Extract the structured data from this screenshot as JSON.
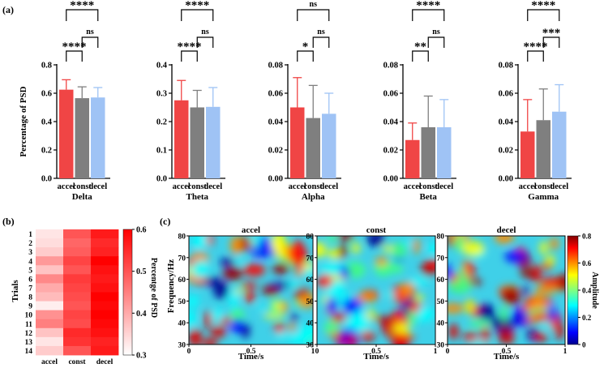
{
  "panel_labels": {
    "a": "(a)",
    "b": "(b)",
    "c": "(c)"
  },
  "colors": {
    "accel": "#f04545",
    "const": "#7f7f7f",
    "decel": "#9fc3f5"
  },
  "chart_data": [
    {
      "type": "bar",
      "band": "Delta",
      "ylabel": "Percentage of PSD",
      "categories": [
        "accel",
        "const",
        "decel"
      ],
      "values": [
        0.625,
        0.565,
        0.57
      ],
      "errors": [
        0.07,
        0.08,
        0.07
      ],
      "ylim": [
        0,
        0.8
      ],
      "yticks": [
        0.0,
        0.2,
        0.4,
        0.6,
        0.8
      ],
      "ytick_labels": [
        "0.0",
        "0.2",
        "0.4",
        "0.6",
        "0.8"
      ],
      "significance": [
        {
          "pair": [
            "accel",
            "const"
          ],
          "label": "****"
        },
        {
          "pair": [
            "const",
            "decel"
          ],
          "label": "ns"
        },
        {
          "pair": [
            "accel",
            "decel"
          ],
          "label": "****"
        }
      ]
    },
    {
      "type": "bar",
      "band": "Theta",
      "ylabel": "",
      "categories": [
        "accel",
        "const",
        "decel"
      ],
      "values": [
        0.275,
        0.25,
        0.252
      ],
      "errors": [
        0.07,
        0.06,
        0.068
      ],
      "ylim": [
        0,
        0.4
      ],
      "yticks": [
        0.0,
        0.1,
        0.2,
        0.3,
        0.4
      ],
      "ytick_labels": [
        "0.0",
        "0.1",
        "0.2",
        "0.3",
        "0.4"
      ],
      "significance": [
        {
          "pair": [
            "accel",
            "const"
          ],
          "label": "****"
        },
        {
          "pair": [
            "const",
            "decel"
          ],
          "label": "ns"
        },
        {
          "pair": [
            "accel",
            "decel"
          ],
          "label": "****"
        }
      ]
    },
    {
      "type": "bar",
      "band": "Alpha",
      "ylabel": "",
      "categories": [
        "accel",
        "const",
        "decel"
      ],
      "values": [
        0.05,
        0.0425,
        0.0455
      ],
      "errors": [
        0.021,
        0.023,
        0.0145
      ],
      "ylim": [
        0,
        0.08
      ],
      "yticks": [
        0.0,
        0.02,
        0.04,
        0.06,
        0.08
      ],
      "ytick_labels": [
        "0.00",
        "0.02",
        "0.04",
        "0.06",
        "0.08"
      ],
      "significance": [
        {
          "pair": [
            "accel",
            "const"
          ],
          "label": "*"
        },
        {
          "pair": [
            "const",
            "decel"
          ],
          "label": "ns"
        },
        {
          "pair": [
            "accel",
            "decel"
          ],
          "label": "ns"
        }
      ]
    },
    {
      "type": "bar",
      "band": "Beta",
      "ylabel": "",
      "categories": [
        "accel",
        "const",
        "decel"
      ],
      "values": [
        0.027,
        0.036,
        0.036
      ],
      "errors": [
        0.012,
        0.022,
        0.0195
      ],
      "ylim": [
        0,
        0.08
      ],
      "yticks": [
        0.0,
        0.02,
        0.04,
        0.06,
        0.08
      ],
      "ytick_labels": [
        "0.00",
        "0.02",
        "0.04",
        "0.06",
        "0.08"
      ],
      "significance": [
        {
          "pair": [
            "accel",
            "const"
          ],
          "label": "**"
        },
        {
          "pair": [
            "const",
            "decel"
          ],
          "label": "ns"
        },
        {
          "pair": [
            "accel",
            "decel"
          ],
          "label": "****"
        }
      ]
    },
    {
      "type": "bar",
      "band": "Gamma",
      "ylabel": "",
      "categories": [
        "accel",
        "const",
        "decel"
      ],
      "values": [
        0.033,
        0.041,
        0.047
      ],
      "errors": [
        0.0225,
        0.022,
        0.019
      ],
      "ylim": [
        0,
        0.08
      ],
      "yticks": [
        0.0,
        0.02,
        0.04,
        0.06,
        0.08
      ],
      "ytick_labels": [
        "0.00",
        "0.02",
        "0.04",
        "0.06",
        "0.08"
      ],
      "significance": [
        {
          "pair": [
            "accel",
            "const"
          ],
          "label": "****"
        },
        {
          "pair": [
            "const",
            "decel"
          ],
          "label": "***"
        },
        {
          "pair": [
            "accel",
            "decel"
          ],
          "label": "****"
        }
      ]
    },
    {
      "type": "heatmap",
      "title": "",
      "ylabel": "Trials",
      "colorbar_label": "Percentge of PSD",
      "x_categories": [
        "accel",
        "const",
        "decel"
      ],
      "y_categories": [
        "1",
        "2",
        "3",
        "4",
        "5",
        "6",
        "7",
        "8",
        "9",
        "10",
        "11",
        "12",
        "13",
        "14"
      ],
      "values": [
        [
          0.33,
          0.5,
          0.57
        ],
        [
          0.34,
          0.48,
          0.55
        ],
        [
          0.36,
          0.49,
          0.56
        ],
        [
          0.42,
          0.52,
          0.6
        ],
        [
          0.37,
          0.5,
          0.58
        ],
        [
          0.44,
          0.53,
          0.57
        ],
        [
          0.4,
          0.52,
          0.58
        ],
        [
          0.38,
          0.51,
          0.6
        ],
        [
          0.32,
          0.5,
          0.59
        ],
        [
          0.43,
          0.52,
          0.6
        ],
        [
          0.45,
          0.51,
          0.59
        ],
        [
          0.37,
          0.55,
          0.58
        ],
        [
          0.33,
          0.54,
          0.56
        ],
        [
          0.36,
          0.5,
          0.57
        ]
      ],
      "colorbar_range": [
        0.3,
        0.6
      ],
      "colorbar_ticks": [
        "0.3",
        "0.4",
        "0.5",
        "0.6"
      ]
    },
    {
      "type": "heatmap",
      "subtype": "time-frequency",
      "titles": [
        "accel",
        "const",
        "decel"
      ],
      "xlabel": "Time/s",
      "ylabel": "Frequency/Hz",
      "colorbar_label": "Amplitude",
      "xlim": [
        0,
        1
      ],
      "xtick_labels": [
        "0",
        "0.5",
        "1"
      ],
      "ylim": [
        30,
        80
      ],
      "ytick_labels": [
        "30",
        "40",
        "50",
        "60",
        "70",
        "80"
      ],
      "colorbar_range": [
        0,
        0.8
      ],
      "colorbar_ticks": [
        "0",
        "0.2",
        "0.4",
        "0.6",
        "0.8"
      ]
    }
  ]
}
